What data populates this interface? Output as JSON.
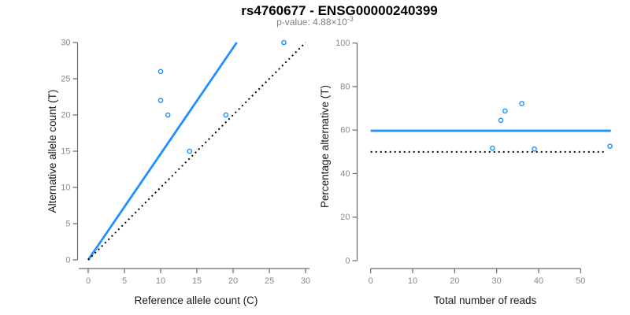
{
  "figure": {
    "title": "rs4760677 - ENSG00000240399",
    "pvalue_label": "p-value: 4.88×10",
    "pvalue_exponent": "-3"
  },
  "colors": {
    "accent_blue": "#1E90FF",
    "dotted_black": "#000000",
    "axis_line": "#6b6b6b",
    "tick_label": "#8a8a8a",
    "axis_title": "#1a1a1a",
    "title_text": "#000000",
    "subtitle_text": "#7f7f7f"
  },
  "chart_data": [
    {
      "name": "allele-counts-scatter",
      "type": "scatter",
      "xlabel": "Reference allele count (C)",
      "ylabel": "Alternative allele count (T)",
      "xlim": [
        0,
        30.5
      ],
      "ylim": [
        0,
        30.3
      ],
      "xticks": [
        0,
        5,
        10,
        15,
        20,
        25,
        30
      ],
      "yticks": [
        0,
        5,
        10,
        15,
        20,
        25,
        30
      ],
      "points": [
        [
          10,
          26
        ],
        [
          10,
          22
        ],
        [
          11,
          20
        ],
        [
          14,
          15
        ],
        [
          19,
          20
        ],
        [
          27,
          30
        ]
      ],
      "lines": [
        {
          "name": "fitted-ratio-line",
          "style": "solid",
          "color": "#1E90FF",
          "width": 2.8,
          "from": [
            0,
            0
          ],
          "to": [
            20.5,
            30
          ]
        },
        {
          "name": "identity-line",
          "style": "dotted",
          "color": "#000000",
          "width": 2,
          "from": [
            0,
            0
          ],
          "to": [
            30,
            30
          ]
        }
      ],
      "grid": false,
      "legend": null
    },
    {
      "name": "percentage-vs-reads-scatter",
      "type": "scatter",
      "xlabel": "Total number of reads",
      "ylabel": "Percentage alternative (T)",
      "xlim": [
        0,
        57.3
      ],
      "ylim": [
        0,
        100
      ],
      "xticks": [
        0,
        10,
        20,
        30,
        40,
        50
      ],
      "yticks": [
        0,
        20,
        40,
        60,
        80,
        100
      ],
      "points": [
        [
          29,
          51.7
        ],
        [
          31,
          64.5
        ],
        [
          32,
          68.8
        ],
        [
          36,
          72.2
        ],
        [
          39,
          51.3
        ],
        [
          57,
          52.6
        ]
      ],
      "lines": [
        {
          "name": "fitted-percentage-line",
          "style": "solid",
          "color": "#1E90FF",
          "width": 2.8,
          "from": [
            0,
            59.7
          ],
          "to": [
            57.2,
            59.7
          ]
        },
        {
          "name": "null-percentage-line",
          "style": "dotted",
          "color": "#000000",
          "width": 2,
          "from": [
            0,
            50
          ],
          "to": [
            56,
            50
          ]
        }
      ],
      "grid": false,
      "legend": null
    }
  ]
}
